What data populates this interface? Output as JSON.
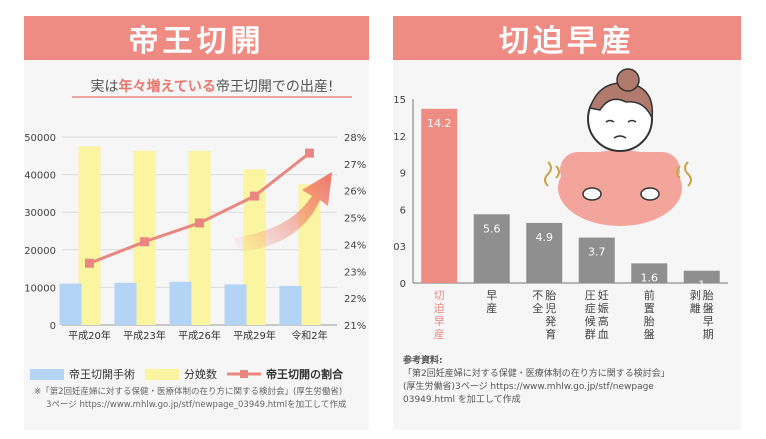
{
  "left": {
    "banner": "帝王切開",
    "headline_pre": "実は",
    "headline_em": "年々増えている",
    "headline_post": "帝王切開での出産!",
    "chart_data": {
      "type": "bar",
      "categories": [
        "平成20年",
        "平成23年",
        "平成26年",
        "平成29年",
        "令和2年"
      ],
      "series": [
        {
          "name": "帝王切開手術",
          "values": [
            11000,
            11200,
            11500,
            10800,
            10400
          ]
        },
        {
          "name": "分娩数",
          "values": [
            47500,
            46300,
            46300,
            41400,
            37400
          ]
        },
        {
          "name": "帝王切開の割合",
          "type": "line",
          "axis": "right",
          "values": [
            23.3,
            24.1,
            24.8,
            25.8,
            27.4
          ]
        }
      ],
      "y_left": {
        "ticks": [
          "0",
          "10000",
          "20000",
          "30000",
          "40000",
          "50000"
        ],
        "ylim": [
          0,
          50000
        ]
      },
      "y_right": {
        "ticks": [
          "21%",
          "22%",
          "23%",
          "24%",
          "25%",
          "26%",
          "27%",
          "28%"
        ],
        "ylim": [
          21,
          28
        ]
      },
      "colors": {
        "surgery": "#b3d4f5",
        "births": "#fbf4a0",
        "ratio": "#ea8680"
      }
    },
    "legend": [
      "帝王切開手術",
      "分娩数",
      "帝王切開の割合"
    ],
    "note_line1": "※「第2回妊産婦に対する保健・医療体制の在り方に関する検討会」(厚生労働省)",
    "note_line2": "3ページ https://www.mhlw.go.jp/stf/newpage_03949.htmlを加工して作成"
  },
  "right": {
    "banner": "切迫早産",
    "chart_data": {
      "type": "bar",
      "categories": [
        "切迫早産",
        "早産",
        "胎児発育不全",
        "妊娠高血圧症候群",
        "前置胎盤",
        "胎盤早期剥離"
      ],
      "values": [
        14.2,
        5.6,
        4.9,
        3.7,
        1.6,
        1
      ],
      "value_labels": [
        "14.2",
        "5.6",
        "4.9",
        "3.7",
        "1.6",
        "1"
      ],
      "y_ticks": [
        "0",
        "03",
        "6",
        "9",
        "12",
        "15"
      ],
      "ylim": [
        0,
        15
      ],
      "colors": {
        "highlight": "#ee8c84",
        "normal": "#8f8f8f"
      }
    },
    "ref_title": "参考資料:",
    "ref_line1": "「第2回妊産婦に対する保健・医療体制の在り方に関する検討会」",
    "ref_line2": "(厚生労働省)3ページ https://www.mhlw.go.jp/stf/newpage",
    "ref_line3": "03949.html を加工して作成"
  }
}
